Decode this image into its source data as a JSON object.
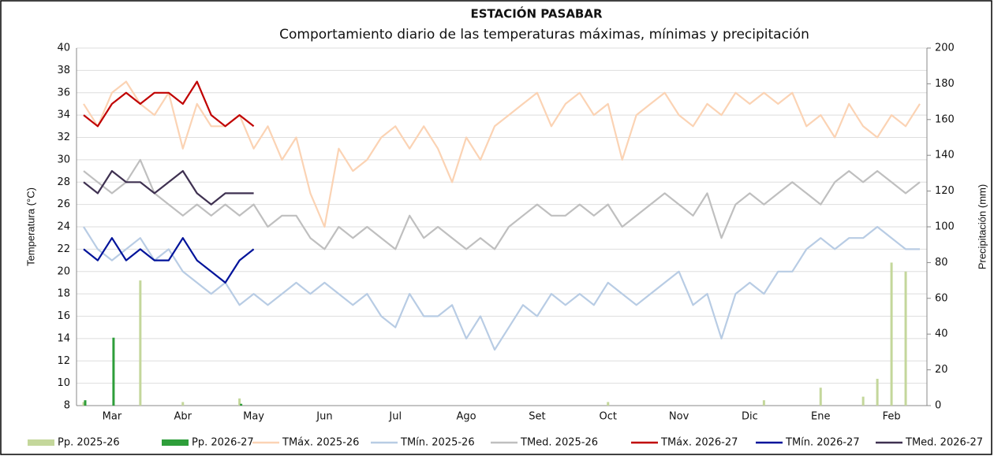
{
  "chart_data": {
    "type": "combo",
    "title": "ESTACIÓN PASABAR",
    "subtitle": "Comportamiento diario de las temperaturas máximas, mínimas  y precipitación",
    "y_label": "Temperatura (°C)",
    "y2_label": "Precipitación (mm)",
    "ylim": [
      8,
      40
    ],
    "yticks": [
      8,
      10,
      12,
      14,
      16,
      18,
      20,
      22,
      24,
      26,
      28,
      30,
      32,
      34,
      36,
      38,
      40
    ],
    "y2lim": [
      0,
      200
    ],
    "y2ticks": [
      0,
      20,
      40,
      60,
      80,
      100,
      120,
      140,
      160,
      180,
      200
    ],
    "grid": true,
    "categories": [
      null,
      null,
      "Mar",
      null,
      null,
      null,
      null,
      "Abr",
      null,
      null,
      null,
      null,
      "May",
      null,
      null,
      null,
      null,
      "Jun",
      null,
      null,
      null,
      null,
      "Jul",
      null,
      null,
      null,
      null,
      "Ago",
      null,
      null,
      null,
      null,
      "Set",
      null,
      null,
      null,
      null,
      "Oct",
      null,
      null,
      null,
      null,
      "Nov",
      null,
      null,
      null,
      null,
      "Dic",
      null,
      null,
      null,
      null,
      "Ene",
      null,
      null,
      null,
      null,
      "Feb",
      null,
      null
    ],
    "series": [
      {
        "name": "Pp. 2025-26",
        "type": "bar",
        "axis": "y2",
        "color": "#c4d79b",
        "values": [
          2,
          0,
          0,
          0,
          70,
          0,
          0,
          2,
          0,
          0,
          0,
          4,
          0,
          0,
          0,
          0,
          0,
          0,
          0,
          0,
          0,
          0,
          0,
          0,
          0,
          0,
          0,
          0,
          0,
          0,
          0,
          0,
          0,
          0,
          0,
          0,
          0,
          2,
          0,
          0,
          0,
          0,
          0,
          0,
          0,
          0,
          0,
          0,
          3,
          0,
          0,
          0,
          10,
          0,
          0,
          5,
          15,
          80,
          75,
          0
        ]
      },
      {
        "name": "Pp. 2026-27",
        "type": "bar",
        "axis": "y2",
        "color": "#2e9e3a",
        "values": [
          3,
          0,
          38,
          0,
          0,
          0,
          0,
          0,
          0,
          0,
          0,
          1,
          null,
          null,
          null,
          null,
          null,
          null,
          null,
          null,
          null,
          null,
          null,
          null,
          null,
          null,
          null,
          null,
          null,
          null,
          null,
          null,
          null,
          null,
          null,
          null,
          null,
          null,
          null,
          null,
          null,
          null,
          null,
          null,
          null,
          null,
          null,
          null,
          null,
          null,
          null,
          null,
          null,
          null,
          null,
          null,
          null,
          null,
          null,
          null
        ]
      },
      {
        "name": "TMáx. 2025-26",
        "type": "line",
        "color": "#fbd3b4",
        "values": [
          35,
          33,
          36,
          37,
          35,
          34,
          36,
          31,
          35,
          33,
          33,
          34,
          31,
          33,
          30,
          32,
          27,
          24,
          31,
          29,
          30,
          32,
          33,
          31,
          33,
          31,
          28,
          32,
          30,
          33,
          34,
          35,
          36,
          33,
          35,
          36,
          34,
          35,
          30,
          34,
          35,
          36,
          34,
          33,
          35,
          34,
          36,
          35,
          36,
          35,
          36,
          33,
          34,
          32,
          35,
          33,
          32,
          34,
          33,
          35
        ]
      },
      {
        "name": "TMín. 2025-26",
        "type": "line",
        "color": "#b8cce4",
        "values": [
          24,
          22,
          21,
          22,
          23,
          21,
          22,
          20,
          19,
          18,
          19,
          17,
          18,
          17,
          18,
          19,
          18,
          19,
          18,
          17,
          18,
          16,
          15,
          18,
          16,
          16,
          17,
          14,
          16,
          13,
          15,
          17,
          16,
          18,
          17,
          18,
          17,
          19,
          18,
          17,
          18,
          19,
          20,
          17,
          18,
          14,
          18,
          19,
          18,
          20,
          20,
          22,
          23,
          22,
          23,
          23,
          24,
          23,
          22,
          22
        ]
      },
      {
        "name": "TMed. 2025-26",
        "type": "line",
        "color": "#bfbfbf",
        "values": [
          29,
          28,
          27,
          28,
          30,
          27,
          26,
          25,
          26,
          25,
          26,
          25,
          26,
          24,
          25,
          25,
          23,
          22,
          24,
          23,
          24,
          23,
          22,
          25,
          23,
          24,
          23,
          22,
          23,
          22,
          24,
          25,
          26,
          25,
          25,
          26,
          25,
          26,
          24,
          25,
          26,
          27,
          26,
          25,
          27,
          23,
          26,
          27,
          26,
          27,
          28,
          27,
          26,
          28,
          29,
          28,
          29,
          28,
          27,
          28
        ]
      },
      {
        "name": "TMáx. 2026-27",
        "type": "line",
        "color": "#c00000",
        "values": [
          34,
          33,
          35,
          36,
          35,
          36,
          36,
          35,
          37,
          34,
          33,
          34,
          33,
          null,
          null,
          null,
          null,
          null,
          null,
          null,
          null,
          null,
          null,
          null,
          null,
          null,
          null,
          null,
          null,
          null,
          null,
          null,
          null,
          null,
          null,
          null,
          null,
          null,
          null,
          null,
          null,
          null,
          null,
          null,
          null,
          null,
          null,
          null,
          null,
          null,
          null,
          null,
          null,
          null,
          null,
          null,
          null,
          null,
          null,
          null
        ]
      },
      {
        "name": "TMín. 2026-27",
        "type": "line",
        "color": "#00139a",
        "values": [
          22,
          21,
          23,
          21,
          22,
          21,
          21,
          23,
          21,
          20,
          19,
          21,
          22,
          null,
          null,
          null,
          null,
          null,
          null,
          null,
          null,
          null,
          null,
          null,
          null,
          null,
          null,
          null,
          null,
          null,
          null,
          null,
          null,
          null,
          null,
          null,
          null,
          null,
          null,
          null,
          null,
          null,
          null,
          null,
          null,
          null,
          null,
          null,
          null,
          null,
          null,
          null,
          null,
          null,
          null,
          null,
          null,
          null,
          null,
          null
        ]
      },
      {
        "name": "TMed. 2026-27",
        "type": "line",
        "color": "#3f3151",
        "values": [
          28,
          27,
          29,
          28,
          28,
          27,
          28,
          29,
          27,
          26,
          27,
          27,
          27,
          null,
          null,
          null,
          null,
          null,
          null,
          null,
          null,
          null,
          null,
          null,
          null,
          null,
          null,
          null,
          null,
          null,
          null,
          null,
          null,
          null,
          null,
          null,
          null,
          null,
          null,
          null,
          null,
          null,
          null,
          null,
          null,
          null,
          null,
          null,
          null,
          null,
          null,
          null,
          null,
          null,
          null,
          null,
          null,
          null,
          null,
          null
        ]
      }
    ]
  }
}
